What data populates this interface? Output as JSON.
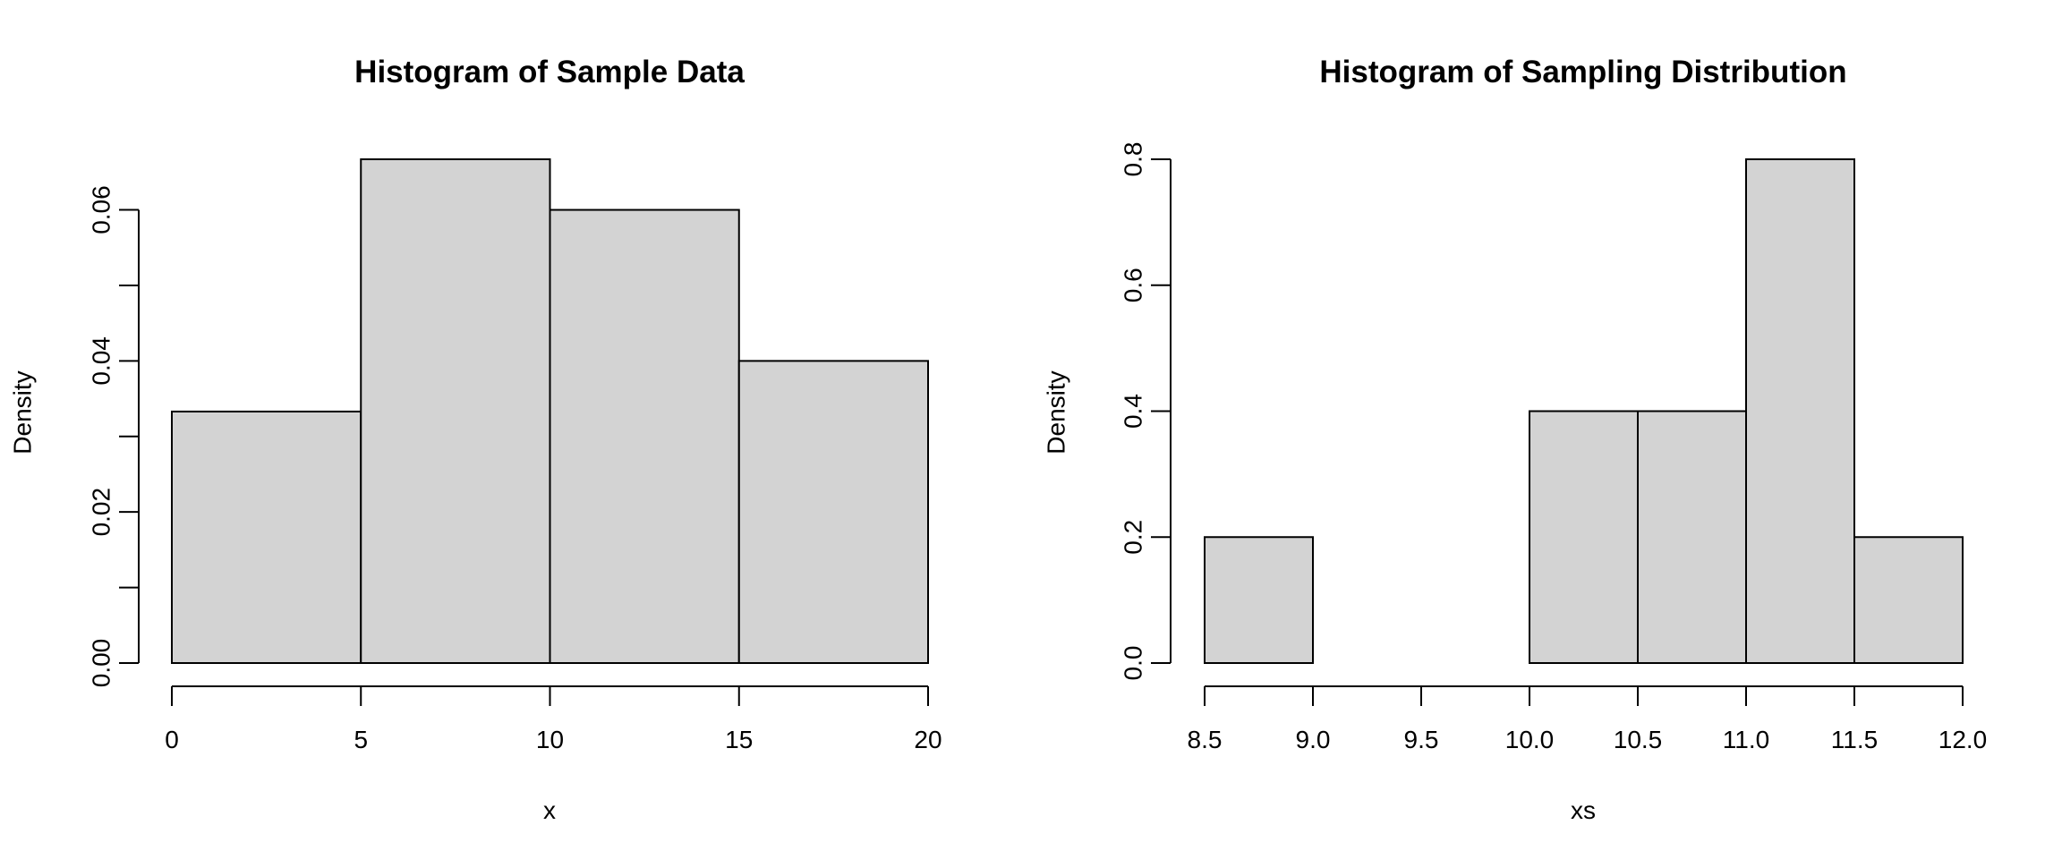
{
  "chart_data": [
    {
      "type": "bar",
      "title": "Histogram of Sample Data",
      "xlabel": "x",
      "ylabel": "Density",
      "bins": [
        [
          0,
          5
        ],
        [
          5,
          10
        ],
        [
          10,
          15
        ],
        [
          15,
          20
        ]
      ],
      "values": [
        0.0333,
        0.0667,
        0.06,
        0.04
      ],
      "xlim": [
        0,
        20
      ],
      "ylim": [
        0,
        0.0667
      ],
      "x_ticks": [
        "0",
        "5",
        "10",
        "15",
        "20"
      ],
      "y_ticks": [
        "0.00",
        "0.02",
        "0.04",
        "0.06"
      ],
      "bar_color": "#d3d3d3",
      "grid": false
    },
    {
      "type": "bar",
      "title": "Histogram of Sampling Distribution",
      "xlabel": "xs",
      "ylabel": "Density",
      "bins": [
        [
          8.5,
          9.0
        ],
        [
          9.0,
          9.5
        ],
        [
          9.5,
          10.0
        ],
        [
          10.0,
          10.5
        ],
        [
          10.5,
          11.0
        ],
        [
          11.0,
          11.5
        ],
        [
          11.5,
          12.0
        ]
      ],
      "values": [
        0.2,
        0,
        0,
        0.4,
        0.4,
        0.8,
        0.2
      ],
      "xlim": [
        8.5,
        12.0
      ],
      "ylim": [
        0,
        0.8
      ],
      "x_ticks": [
        "8.5",
        "9.0",
        "9.5",
        "10.0",
        "10.5",
        "11.0",
        "11.5",
        "12.0"
      ],
      "y_ticks": [
        "0.0",
        "0.2",
        "0.4",
        "0.6",
        "0.8"
      ],
      "bar_color": "#d3d3d3",
      "grid": false
    }
  ]
}
